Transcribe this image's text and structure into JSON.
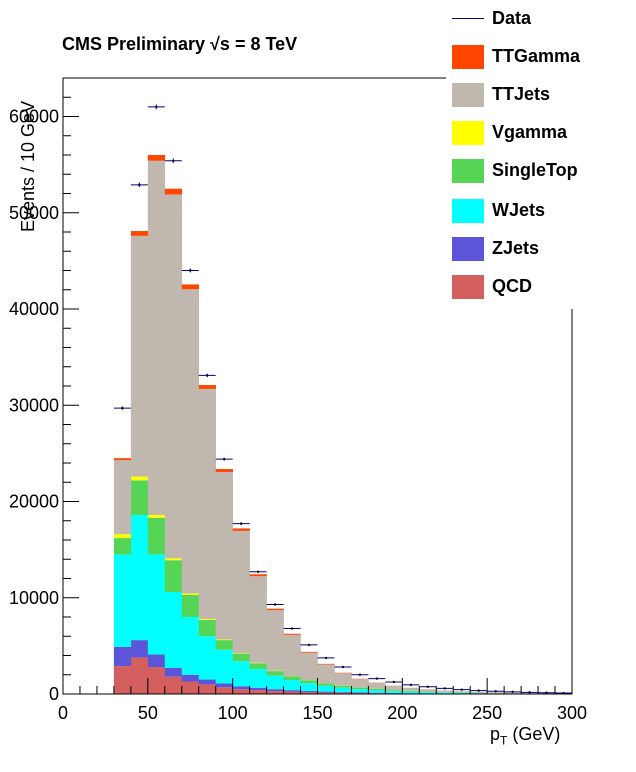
{
  "title": "CMS Preliminary   √s = 8 TeV",
  "legend": [
    {
      "name": "Data",
      "color": "#000080",
      "style": "line"
    },
    {
      "name": "TTGamma",
      "color": "#ff4500",
      "style": "fill"
    },
    {
      "name": "TTJets",
      "color": "#c0b8ae",
      "style": "fill"
    },
    {
      "name": "Vgamma",
      "color": "#ffff00",
      "style": "fill"
    },
    {
      "name": "SingleTop",
      "color": "#55d455",
      "style": "fill"
    },
    {
      "name": "WJets",
      "color": "#00ffff",
      "style": "fill"
    },
    {
      "name": "ZJets",
      "color": "#5c55d9",
      "style": "fill"
    },
    {
      "name": "QCD",
      "color": "#d45f5f",
      "style": "fill"
    }
  ],
  "axes": {
    "ylabel": "Events / 10 GeV",
    "xlabel_main": "p",
    "xlabel_sub": "T",
    "xlabel_unit": " (GeV)",
    "xticks": [
      "0",
      "50",
      "100",
      "150",
      "200",
      "250",
      "300"
    ],
    "yticks": [
      "0",
      "10000",
      "20000",
      "30000",
      "40000",
      "50000",
      "60000"
    ]
  },
  "chart_data": {
    "type": "bar",
    "stacked": true,
    "x_bin_edges": [
      30,
      40,
      50,
      60,
      70,
      80,
      90,
      100,
      110,
      120,
      130,
      140,
      150,
      160,
      170,
      180,
      190,
      200,
      210,
      220,
      230,
      240,
      250,
      260,
      270,
      280,
      290,
      300
    ],
    "xlim": [
      0,
      300
    ],
    "ylim": [
      0,
      64000
    ],
    "series": [
      {
        "name": "QCD",
        "color": "#d45f5f",
        "values": [
          2900,
          3800,
          2800,
          1800,
          1300,
          1000,
          700,
          500,
          400,
          300,
          250,
          200,
          150,
          120,
          100,
          80,
          60,
          50,
          40,
          30,
          25,
          20,
          15,
          10,
          8,
          6,
          5
        ]
      },
      {
        "name": "ZJets",
        "color": "#5c55d9",
        "values": [
          2000,
          1800,
          1300,
          900,
          700,
          500,
          400,
          300,
          250,
          200,
          150,
          120,
          100,
          80,
          60,
          50,
          40,
          30,
          25,
          20,
          15,
          12,
          10,
          8,
          6,
          5,
          4
        ]
      },
      {
        "name": "WJets",
        "color": "#00ffff",
        "values": [
          9600,
          13000,
          10400,
          7900,
          6000,
          4500,
          3500,
          2600,
          1950,
          1400,
          1050,
          800,
          600,
          450,
          340,
          270,
          200,
          160,
          120,
          90,
          70,
          55,
          45,
          35,
          28,
          22,
          18
        ]
      },
      {
        "name": "SingleTop",
        "color": "#55d455",
        "values": [
          1700,
          3600,
          3800,
          3300,
          2300,
          1700,
          1000,
          800,
          600,
          480,
          380,
          310,
          260,
          200,
          160,
          130,
          100,
          80,
          60,
          50,
          40,
          30,
          25,
          20,
          16,
          12,
          10
        ]
      },
      {
        "name": "Vgamma",
        "color": "#ffff00",
        "values": [
          400,
          400,
          300,
          200,
          150,
          100,
          70,
          50,
          40,
          30,
          20,
          15,
          12,
          10,
          8,
          6,
          5,
          4,
          3,
          2,
          2,
          1,
          1,
          1,
          1,
          1,
          1
        ]
      },
      {
        "name": "TTJets",
        "color": "#c0b8ae",
        "values": [
          7700,
          25000,
          36800,
          37800,
          31600,
          23900,
          17400,
          12700,
          9000,
          6300,
          4300,
          2850,
          1950,
          1300,
          880,
          620,
          430,
          300,
          220,
          160,
          120,
          90,
          70,
          50,
          40,
          30,
          25
        ]
      },
      {
        "name": "TTGamma",
        "color": "#ff4500",
        "values": [
          200,
          500,
          600,
          600,
          500,
          400,
          300,
          250,
          200,
          150,
          110,
          80,
          60,
          45,
          35,
          25,
          20,
          15,
          12,
          10,
          8,
          6,
          5,
          4,
          3,
          2,
          2
        ]
      }
    ],
    "data_points": {
      "name": "Data",
      "color": "#000080",
      "x": [
        35,
        45,
        55,
        65,
        75,
        85,
        95,
        105,
        115,
        125,
        135,
        145,
        155,
        165,
        175,
        185,
        195,
        205,
        215,
        225,
        235,
        245,
        255,
        265,
        275,
        285,
        295
      ],
      "y": [
        29700,
        52900,
        61000,
        55400,
        44000,
        33100,
        24400,
        17700,
        12700,
        9300,
        6800,
        5100,
        3750,
        2800,
        2000,
        1600,
        1250,
        950,
        750,
        580,
        450,
        350,
        280,
        220,
        170,
        130,
        100
      ]
    }
  }
}
